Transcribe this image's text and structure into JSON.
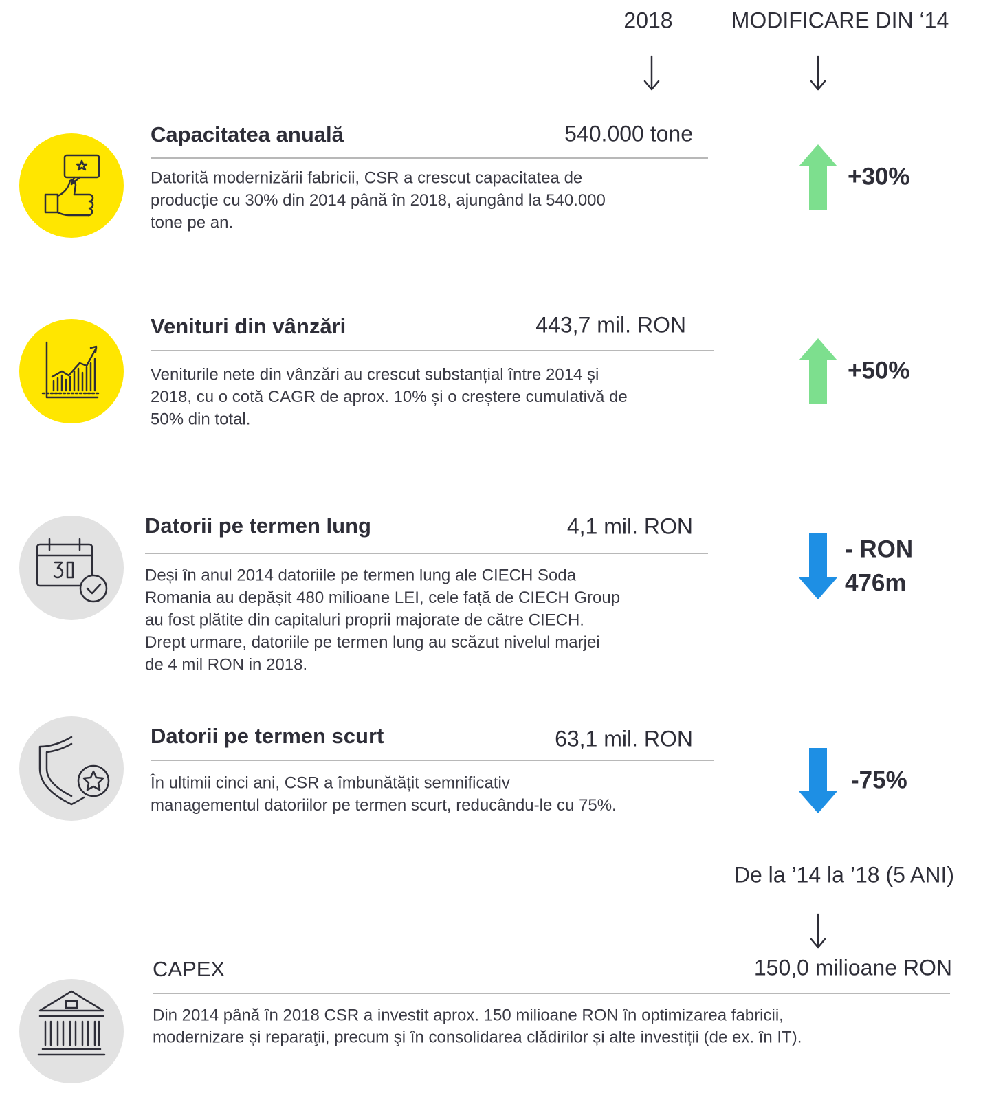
{
  "header": {
    "col_year": "2018",
    "col_change": "MODIFICARE DIN ‘14"
  },
  "items": [
    {
      "title": "Capacitatea anuală",
      "value": "540.000 tone",
      "description": [
        "Datorită modernizării fabricii, CSR a crescut capacitatea de",
        "producție cu 30% din 2014 până în 2018, ajungând la 540.000",
        "tone pe an."
      ],
      "change": [
        "+30%"
      ],
      "direction": "up"
    },
    {
      "title": "Venituri din vânzări",
      "value": "443,7 mil. RON",
      "description": [
        "Veniturile nete din vânzări au crescut substanțial între 2014 și",
        "2018, cu o cotă CAGR de aprox. 10% și o creștere cumulativă de",
        "50% din total."
      ],
      "change": [
        "+50%"
      ],
      "direction": "up"
    },
    {
      "title": "Datorii pe termen lung",
      "value": "4,1 mil. RON",
      "description": [
        "Deși în anul 2014 datoriile pe termen lung ale CIECH Soda",
        "Romania au depășit 480 milioane LEI, cele față de CIECH Group",
        "au fost plătite din capitaluri proprii majorate de către CIECH.",
        "Drept urmare, datoriile pe termen lung au scăzut nivelul marjei",
        "de 4 mil RON in 2018."
      ],
      "change": [
        "- RON",
        "476m"
      ],
      "direction": "down"
    },
    {
      "title": "Datorii pe termen scurt",
      "value": "63,1 mil. RON",
      "description": [
        "În ultimii cinci ani, CSR a îmbunătățit semnificativ",
        "managementul datoriilor pe termen scurt, reducându-le cu 75%."
      ],
      "change": [
        "-75%"
      ],
      "direction": "down"
    }
  ],
  "capex": {
    "period": "De la ’14 la ’18 (5 ANI)",
    "title": "CAPEX",
    "value": "150,0 milioane RON",
    "description": [
      "Din 2014 până în 2018 CSR a investit aprox. 150 milioane RON în optimizarea fabricii,",
      "modernizare și reparaţii, precum şi în consolidarea clădirilor și alte investiții (de ex. în IT)."
    ]
  }
}
